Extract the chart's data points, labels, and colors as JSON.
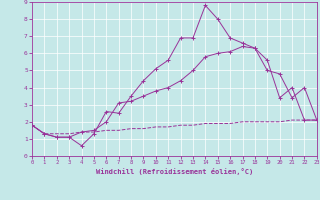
{
  "xlabel": "Windchill (Refroidissement éolien,°C)",
  "bg_color": "#c5e8e8",
  "line_color": "#993399",
  "xlim": [
    0,
    23
  ],
  "ylim": [
    0,
    9
  ],
  "xticks": [
    0,
    1,
    2,
    3,
    4,
    5,
    6,
    7,
    8,
    9,
    10,
    11,
    12,
    13,
    14,
    15,
    16,
    17,
    18,
    19,
    20,
    21,
    22,
    23
  ],
  "yticks": [
    0,
    1,
    2,
    3,
    4,
    5,
    6,
    7,
    8,
    9
  ],
  "line1_x": [
    0,
    1,
    2,
    3,
    4,
    5,
    6,
    7,
    8,
    9,
    10,
    11,
    12,
    13,
    14,
    15,
    16,
    17,
    18,
    19,
    20,
    21,
    22,
    23
  ],
  "line1_y": [
    1.8,
    1.3,
    1.1,
    1.1,
    0.6,
    1.3,
    2.6,
    2.5,
    3.5,
    4.4,
    5.1,
    5.6,
    6.9,
    6.9,
    8.8,
    8.0,
    6.9,
    6.6,
    6.3,
    5.6,
    3.4,
    4.0,
    2.1,
    2.1
  ],
  "line2_x": [
    0,
    1,
    2,
    3,
    4,
    5,
    6,
    7,
    8,
    9,
    10,
    11,
    12,
    13,
    14,
    15,
    16,
    17,
    18,
    19,
    20,
    21,
    22,
    23
  ],
  "line2_y": [
    1.8,
    1.3,
    1.1,
    1.1,
    1.4,
    1.5,
    2.0,
    3.1,
    3.2,
    3.5,
    3.8,
    4.0,
    4.4,
    5.0,
    5.8,
    6.0,
    6.1,
    6.4,
    6.3,
    5.0,
    4.8,
    3.4,
    4.0,
    2.1
  ],
  "line3_x": [
    0,
    1,
    2,
    3,
    4,
    5,
    6,
    7,
    8,
    9,
    10,
    11,
    12,
    13,
    14,
    15,
    16,
    17,
    18,
    19,
    20,
    21,
    22,
    23
  ],
  "line3_y": [
    1.8,
    1.3,
    1.3,
    1.3,
    1.4,
    1.4,
    1.5,
    1.5,
    1.6,
    1.6,
    1.7,
    1.7,
    1.8,
    1.8,
    1.9,
    1.9,
    1.9,
    2.0,
    2.0,
    2.0,
    2.0,
    2.1,
    2.1,
    2.1
  ]
}
